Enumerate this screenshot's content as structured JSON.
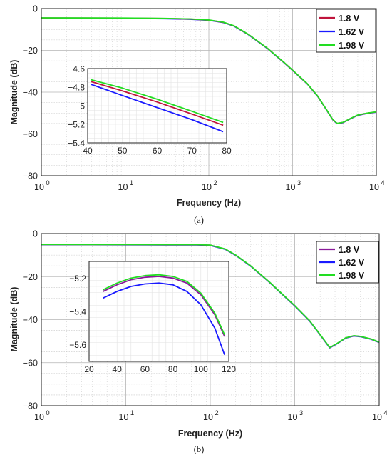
{
  "chart_data": [
    {
      "type": "line",
      "caption": "(a)",
      "xlabel": "Frequency (Hz)",
      "ylabel": "Magnitude (dB)",
      "xscale": "log",
      "xlim": [
        1,
        10000
      ],
      "ylim": [
        -80,
        0
      ],
      "xticks": [
        1,
        10,
        100,
        1000,
        10000
      ],
      "xtick_labels": [
        {
          "base": "10",
          "exp": "0"
        },
        {
          "base": "10",
          "exp": "1"
        },
        {
          "base": "10",
          "exp": "2"
        },
        {
          "base": "10",
          "exp": "3"
        },
        {
          "base": "10",
          "exp": "4"
        }
      ],
      "yticks": [
        0,
        -20,
        -40,
        -60,
        -80
      ],
      "ytick_labels": [
        "0",
        "−20",
        "−40",
        "−60",
        "−80"
      ],
      "grid": true,
      "legend_position": "top-right",
      "series": [
        {
          "name": "1.8 V",
          "color": "#c0143c",
          "x": [
            1,
            10,
            30,
            60,
            100,
            150,
            200,
            300,
            500,
            800,
            1000,
            1500,
            2000,
            2500,
            3000,
            3400,
            4000,
            5000,
            6000,
            8000,
            10000
          ],
          "y": [
            -4.5,
            -4.6,
            -4.75,
            -5.0,
            -5.5,
            -6.6,
            -8.3,
            -12.5,
            -19,
            -26,
            -29.5,
            -36,
            -42,
            -48,
            -53,
            -55,
            -54.5,
            -52.5,
            -51,
            -50,
            -49.5
          ]
        },
        {
          "name": "1.62 V",
          "color": "#1a1aff",
          "x": [
            1,
            10,
            30,
            60,
            100,
            150,
            200,
            300,
            500,
            800,
            1000,
            1500,
            2000,
            2500,
            3000,
            3400,
            4000,
            5000,
            6000,
            8000,
            10000
          ],
          "y": [
            -4.6,
            -4.7,
            -4.85,
            -5.1,
            -5.6,
            -6.7,
            -8.4,
            -12.6,
            -19.1,
            -26.1,
            -29.6,
            -36.1,
            -42.1,
            -48.1,
            -53.1,
            -55.1,
            -54.6,
            -52.6,
            -51.1,
            -50.1,
            -49.6
          ]
        },
        {
          "name": "1.98 V",
          "color": "#22dd22",
          "x": [
            1,
            10,
            30,
            60,
            100,
            150,
            200,
            300,
            500,
            800,
            1000,
            1500,
            2000,
            2500,
            3000,
            3400,
            4000,
            5000,
            6000,
            8000,
            10000
          ],
          "y": [
            -4.45,
            -4.55,
            -4.7,
            -4.95,
            -5.45,
            -6.55,
            -8.25,
            -12.45,
            -18.95,
            -25.95,
            -29.45,
            -35.95,
            -41.95,
            -47.95,
            -52.95,
            -54.95,
            -54.45,
            -52.45,
            -50.95,
            -49.95,
            -49.45
          ]
        }
      ],
      "inset": {
        "xlim": [
          40,
          80
        ],
        "ylim": [
          -5.4,
          -4.6
        ],
        "xticks": [
          40,
          50,
          60,
          70,
          80
        ],
        "xtick_labels": [
          "40",
          "50",
          "60",
          "70",
          "80"
        ],
        "yticks": [
          -4.6,
          -4.8,
          -5.0,
          -5.2,
          -5.4
        ],
        "ytick_labels": [
          "−4.6",
          "−4.8",
          "−5",
          "−5.2",
          "−5.4"
        ],
        "series": [
          {
            "name": "1.8 V",
            "color": "#c0143c",
            "x": [
              41,
              50,
              60,
              70,
              79
            ],
            "y": [
              -4.74,
              -4.84,
              -4.96,
              -5.09,
              -5.21
            ]
          },
          {
            "name": "1.62 V",
            "color": "#1a1aff",
            "x": [
              41,
              50,
              60,
              70,
              79
            ],
            "y": [
              -4.77,
              -4.89,
              -5.02,
              -5.15,
              -5.28
            ]
          },
          {
            "name": "1.98 V",
            "color": "#22dd22",
            "x": [
              41,
              50,
              60,
              70,
              79
            ],
            "y": [
              -4.72,
              -4.81,
              -4.93,
              -5.06,
              -5.18
            ]
          }
        ]
      }
    },
    {
      "type": "line",
      "caption": "(b)",
      "xlabel": "Frequency (Hz)",
      "ylabel": "Magnitude (dB)",
      "xscale": "log",
      "xlim": [
        1,
        10000
      ],
      "ylim": [
        -80,
        0
      ],
      "xticks": [
        1,
        10,
        100,
        1000,
        10000
      ],
      "xtick_labels": [
        {
          "base": "10",
          "exp": "0"
        },
        {
          "base": "10",
          "exp": "1"
        },
        {
          "base": "10",
          "exp": "2"
        },
        {
          "base": "10",
          "exp": "3"
        },
        {
          "base": "10",
          "exp": "4"
        }
      ],
      "yticks": [
        0,
        -20,
        -40,
        -60,
        -80
      ],
      "ytick_labels": [
        "0",
        "−20",
        "−40",
        "−60",
        "−80"
      ],
      "grid": true,
      "legend_position": "top-right",
      "series": [
        {
          "name": "1.8 V",
          "color": "#8b1a9a",
          "x": [
            1,
            10,
            30,
            70,
            100,
            150,
            200,
            300,
            500,
            800,
            1000,
            1500,
            2000,
            2600,
            3200,
            4000,
            5000,
            6000,
            8000,
            10000
          ],
          "y": [
            -5.1,
            -5.15,
            -5.2,
            -5.2,
            -5.4,
            -7.2,
            -10,
            -15,
            -22.5,
            -30,
            -33.5,
            -40.5,
            -47,
            -53,
            -51,
            -48.5,
            -47.5,
            -47.8,
            -49,
            -50.5
          ]
        },
        {
          "name": "1.62 V",
          "color": "#1a1aff",
          "x": [
            1,
            10,
            30,
            70,
            100,
            150,
            200,
            300,
            500,
            800,
            1000,
            1500,
            2000,
            2600,
            3200,
            4000,
            5000,
            6000,
            8000,
            10000
          ],
          "y": [
            -5.15,
            -5.2,
            -5.25,
            -5.25,
            -5.5,
            -7.3,
            -10.1,
            -15.1,
            -22.6,
            -30.1,
            -33.6,
            -40.6,
            -47.1,
            -53.1,
            -51.1,
            -48.6,
            -47.6,
            -47.9,
            -49.1,
            -50.6
          ]
        },
        {
          "name": "1.98 V",
          "color": "#22dd22",
          "x": [
            1,
            10,
            30,
            70,
            100,
            150,
            200,
            300,
            500,
            800,
            1000,
            1500,
            2000,
            2600,
            3200,
            4000,
            5000,
            6000,
            8000,
            10000
          ],
          "y": [
            -5.05,
            -5.1,
            -5.15,
            -5.15,
            -5.35,
            -7.15,
            -9.95,
            -14.95,
            -22.45,
            -29.95,
            -33.45,
            -40.45,
            -46.95,
            -52.95,
            -50.95,
            -48.45,
            -47.45,
            -47.75,
            -48.95,
            -50.45
          ]
        }
      ],
      "inset": {
        "xlim": [
          20,
          120
        ],
        "ylim": [
          -5.7,
          -5.1
        ],
        "xticks": [
          20,
          40,
          60,
          80,
          100,
          120
        ],
        "xtick_labels": [
          "20",
          "40",
          "60",
          "80",
          "100",
          "120"
        ],
        "yticks": [
          -5.2,
          -5.4,
          -5.6
        ],
        "ytick_labels": [
          "−5.2",
          "−5.4",
          "−5.6"
        ],
        "series": [
          {
            "name": "1.8 V",
            "color": "#8b1a9a",
            "x": [
              30,
              40,
              50,
              60,
              70,
              80,
              90,
              100,
              110,
              117
            ],
            "y": [
              -5.28,
              -5.24,
              -5.21,
              -5.195,
              -5.19,
              -5.2,
              -5.23,
              -5.3,
              -5.42,
              -5.55
            ]
          },
          {
            "name": "1.62 V",
            "color": "#1a1aff",
            "x": [
              30,
              40,
              50,
              60,
              70,
              80,
              90,
              100,
              110,
              117
            ],
            "y": [
              -5.32,
              -5.28,
              -5.25,
              -5.235,
              -5.23,
              -5.24,
              -5.28,
              -5.36,
              -5.5,
              -5.66
            ]
          },
          {
            "name": "1.98 V",
            "color": "#22dd22",
            "x": [
              30,
              40,
              50,
              60,
              70,
              80,
              90,
              100,
              110,
              117
            ],
            "y": [
              -5.27,
              -5.23,
              -5.2,
              -5.185,
              -5.18,
              -5.19,
              -5.22,
              -5.29,
              -5.41,
              -5.54
            ]
          }
        ]
      }
    }
  ]
}
